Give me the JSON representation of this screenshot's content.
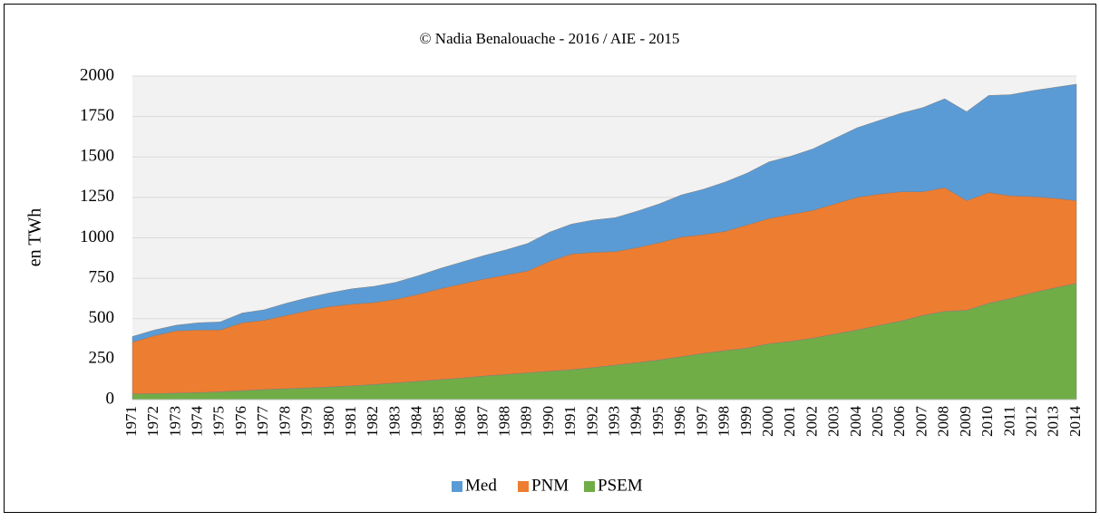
{
  "chart_data": {
    "type": "stacked_area",
    "title": "© Nadia Benalouache - 2016 / AIE - 2015",
    "y_label": "en TWh",
    "categories": [
      "1971",
      "1972",
      "1973",
      "1974",
      "1975",
      "1976",
      "1977",
      "1978",
      "1979",
      "1980",
      "1981",
      "1982",
      "1983",
      "1984",
      "1985",
      "1986",
      "1987",
      "1988",
      "1989",
      "1990",
      "1991",
      "1992",
      "1993",
      "1994",
      "1995",
      "1996",
      "1997",
      "1998",
      "1999",
      "2000",
      "2001",
      "2002",
      "2003",
      "2004",
      "2005",
      "2006",
      "2007",
      "2008",
      "2009",
      "2010",
      "2011",
      "2012",
      "2013",
      "2014"
    ],
    "series": [
      {
        "name": "Med",
        "color": "#5b9bd5",
        "values": [
          35,
          35,
          35,
          45,
          50,
          60,
          65,
          75,
          80,
          85,
          95,
          100,
          105,
          115,
          125,
          135,
          145,
          155,
          170,
          180,
          185,
          200,
          210,
          225,
          240,
          260,
          280,
          305,
          320,
          350,
          360,
          380,
          405,
          430,
          455,
          485,
          520,
          550,
          550,
          600,
          625,
          655,
          685,
          720
        ]
      },
      {
        "name": "PNM",
        "color": "#ed7d31",
        "values": [
          320,
          358,
          385,
          387,
          382,
          420,
          428,
          453,
          478,
          497,
          505,
          507,
          517,
          537,
          562,
          582,
          600,
          615,
          630,
          680,
          715,
          712,
          702,
          712,
          725,
          740,
          735,
          737,
          762,
          775,
          785,
          790,
          805,
          820,
          812,
          800,
          765,
          765,
          678,
          685,
          635,
          595,
          555,
          512
        ]
      },
      {
        "name": "PSEM",
        "color": "#70ad47",
        "values": [
          35,
          37,
          40,
          43,
          48,
          55,
          62,
          67,
          72,
          78,
          85,
          93,
          103,
          113,
          123,
          133,
          145,
          155,
          165,
          175,
          185,
          198,
          213,
          228,
          245,
          265,
          285,
          303,
          318,
          345,
          360,
          380,
          405,
          430,
          458,
          485,
          520,
          545,
          552,
          595,
          625,
          660,
          690,
          718
        ]
      }
    ],
    "ylim": [
      0,
      2000
    ],
    "yticks": [
      0,
      250,
      500,
      750,
      1000,
      1250,
      1500,
      1750,
      2000
    ],
    "grid": true,
    "legend": "bottom"
  }
}
